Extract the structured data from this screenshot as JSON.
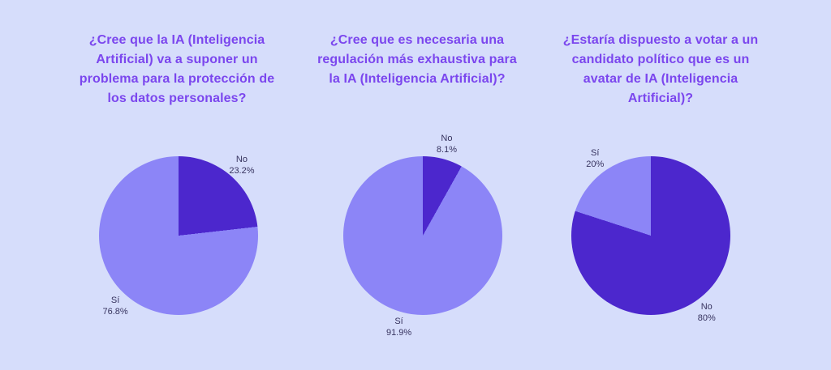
{
  "page": {
    "background_color": "#d6ddfb",
    "title_color": "#7b46ee",
    "label_color": "#37335f"
  },
  "chart_data": [
    {
      "type": "pie",
      "title": "¿Cree que la IA (Inteligencia Artificial) va a suponer un problema para la protección de los datos personales?",
      "slices": [
        {
          "label": "No",
          "value": 23.2,
          "display": "23.2%",
          "color": "#4c27cd"
        },
        {
          "label": "Sí",
          "value": 76.8,
          "display": "76.8%",
          "color": "#8c85f7"
        }
      ],
      "start_angle": "12-oclock",
      "direction": "clockwise",
      "labels_position": "outside",
      "legend": "none"
    },
    {
      "type": "pie",
      "title": "¿Cree que es necesaria una regulación más exhaustiva para la IA (Inteligencia Artificial)?",
      "slices": [
        {
          "label": "No",
          "value": 8.1,
          "display": "8.1%",
          "color": "#4c27cd"
        },
        {
          "label": "Sí",
          "value": 91.9,
          "display": "91.9%",
          "color": "#8c85f7"
        }
      ],
      "start_angle": "12-oclock",
      "direction": "clockwise",
      "labels_position": "outside",
      "legend": "none"
    },
    {
      "type": "pie",
      "title": "¿Estaría dispuesto a votar a un candidato político que es un avatar de IA (Inteligencia Artificial)?",
      "slices": [
        {
          "label": "No",
          "value": 80,
          "display": "80%",
          "color": "#4c27cd"
        },
        {
          "label": "Sí",
          "value": 20,
          "display": "20%",
          "color": "#8c85f7"
        }
      ],
      "start_angle": "12-oclock",
      "direction": "clockwise",
      "labels_position": "outside",
      "legend": "none"
    }
  ]
}
